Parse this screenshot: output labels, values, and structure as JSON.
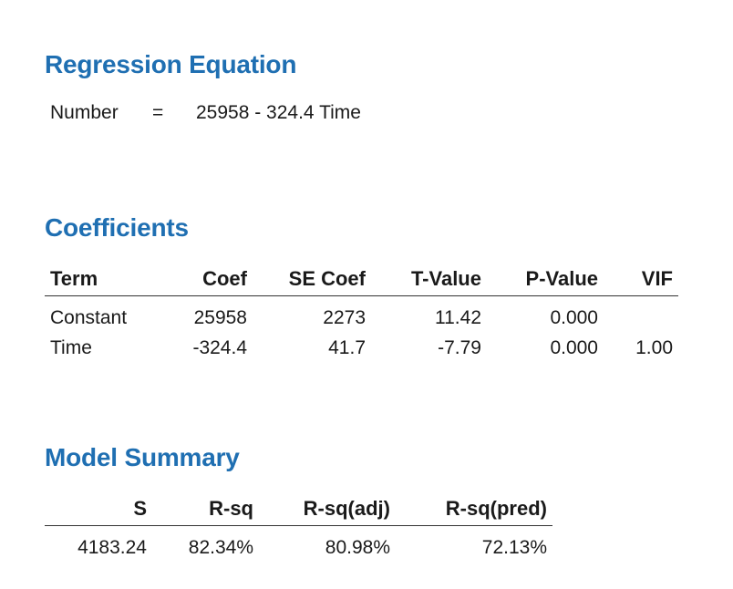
{
  "regression_equation": {
    "title": "Regression Equation",
    "response": "Number",
    "equals": "=",
    "expression": "25958 - 324.4 Time"
  },
  "coefficients": {
    "title": "Coefficients",
    "headers": [
      "Term",
      "Coef",
      "SE Coef",
      "T-Value",
      "P-Value",
      "VIF"
    ],
    "rows": [
      [
        "Constant",
        "25958",
        "2273",
        "11.42",
        "0.000",
        ""
      ],
      [
        "Time",
        "-324.4",
        "41.7",
        "-7.79",
        "0.000",
        "1.00"
      ]
    ]
  },
  "model_summary": {
    "title": "Model Summary",
    "headers": [
      "S",
      "R-sq",
      "R-sq(adj)",
      "R-sq(pred)"
    ],
    "rows": [
      [
        "4183.24",
        "82.34%",
        "80.98%",
        "72.13%"
      ]
    ]
  },
  "colors": {
    "heading": "#1f6fb2",
    "text": "#1a1a1a",
    "rule": "#333333"
  }
}
